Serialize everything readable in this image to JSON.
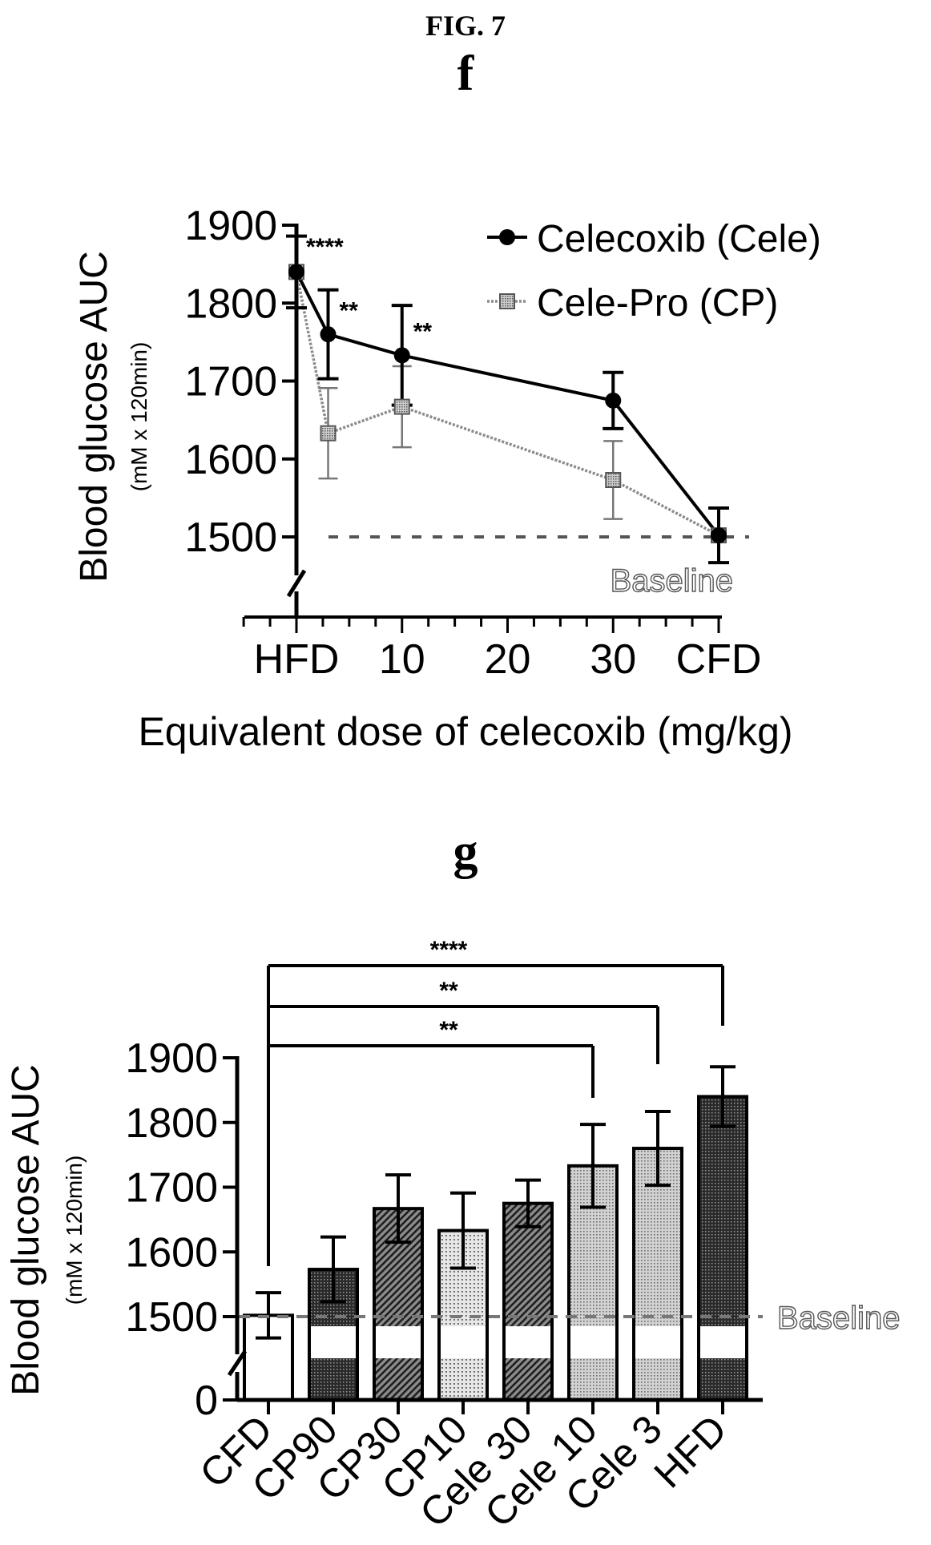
{
  "figure_title": "FIG. 7",
  "chart_data": [
    {
      "panel": "f",
      "type": "line",
      "xlabel": "Equivalent dose of celecoxib (mg/kg)",
      "ylabel": "Blood glucose AUC",
      "yunit": "(mM x 120min)",
      "ylim": [
        1450,
        1900
      ],
      "yticks": [
        1500,
        1600,
        1700,
        1800,
        1900
      ],
      "xlim": [
        -5,
        40
      ],
      "x_tick_labels": [
        {
          "x": 0,
          "label": "HFD"
        },
        {
          "x": 10,
          "label": "10"
        },
        {
          "x": 20,
          "label": "20"
        },
        {
          "x": 30,
          "label": "30"
        },
        {
          "x": 40,
          "label": "CFD"
        }
      ],
      "baseline": {
        "value": 1500,
        "label": "Baseline"
      },
      "series": [
        {
          "name": "Celecoxib (Cele)",
          "x": [
            0,
            3,
            10,
            30,
            40
          ],
          "y": [
            1840,
            1760,
            1733,
            1675,
            1502
          ],
          "err": [
            46,
            57,
            64,
            36,
            35
          ],
          "significance": [
            "****",
            "**",
            "**",
            "",
            ""
          ]
        },
        {
          "name": "Cele-Pro (CP)",
          "x": [
            0,
            3,
            10,
            30,
            40
          ],
          "y": [
            1840,
            1633,
            1667,
            1573,
            1502
          ],
          "err": [
            46,
            58,
            52,
            50,
            35
          ]
        }
      ],
      "legend_position": "top-right"
    },
    {
      "panel": "g",
      "type": "bar",
      "ylabel": "Blood glucose AUC",
      "yunit": "(mM x 120min)",
      "ylim": [
        0,
        1900
      ],
      "y_axis_break": [
        0,
        1450
      ],
      "yticks": [
        0,
        1500,
        1600,
        1700,
        1800,
        1900
      ],
      "categories": [
        "CFD",
        "CP90",
        "CP30",
        "CP10",
        "Cele 30",
        "Cele 10",
        "Cele 3",
        "HFD"
      ],
      "values": [
        1502,
        1573,
        1667,
        1633,
        1675,
        1733,
        1760,
        1840
      ],
      "err": [
        35,
        50,
        52,
        58,
        36,
        64,
        57,
        46
      ],
      "fills": [
        "white",
        "dark",
        "diag",
        "dots",
        "diag",
        "light",
        "light",
        "dark"
      ],
      "baseline": {
        "value": 1500,
        "label": "Baseline"
      },
      "comparisons": [
        {
          "from": "CFD",
          "to": "HFD",
          "label": "****"
        },
        {
          "from": "CFD",
          "to": "Cele 3",
          "label": "**"
        },
        {
          "from": "CFD",
          "to": "Cele 10",
          "label": "**"
        }
      ]
    }
  ]
}
